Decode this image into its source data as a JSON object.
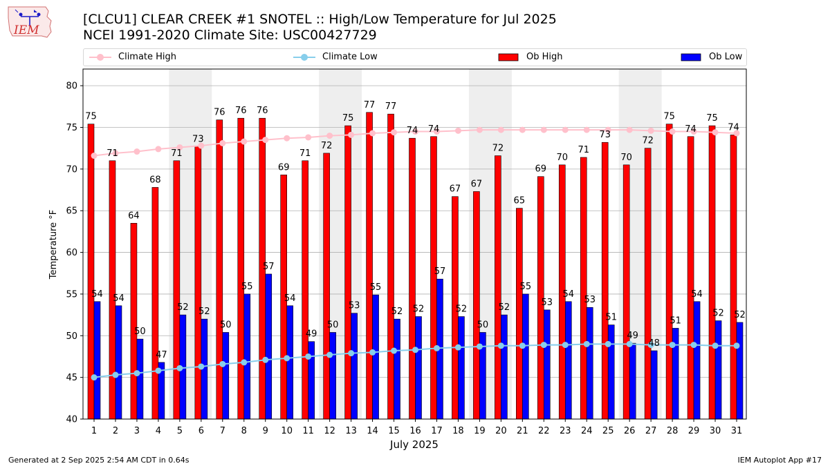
{
  "logo": {
    "text": "IEM"
  },
  "title_line1": "[CLCU1] CLEAR CREEK #1 SNOTEL :: High/Low Temperature for Jul 2025",
  "title_line2": "NCEI 1991-2020 Climate Site: USC00427729",
  "legend": {
    "items": [
      {
        "label": "Climate High",
        "color": "#ffc0cb",
        "kind": "line"
      },
      {
        "label": "Climate Low",
        "color": "#87ceeb",
        "kind": "line"
      },
      {
        "label": "Ob High",
        "color": "#ff0000",
        "kind": "bar"
      },
      {
        "label": "Ob Low",
        "color": "#0000ff",
        "kind": "bar"
      }
    ]
  },
  "footer": {
    "left": "Generated at 2 Sep 2025 2:54 AM CDT in 0.64s",
    "right": "IEM Autoplot App #17"
  },
  "chart_data": {
    "type": "bar",
    "xlabel": "July 2025",
    "ylabel": "Temperature °F",
    "ylim": [
      40,
      82
    ],
    "yticks": [
      40,
      45,
      50,
      55,
      60,
      65,
      70,
      75,
      80
    ],
    "grid": true,
    "legend_position": "top",
    "categories": [
      "1",
      "2",
      "3",
      "4",
      "5",
      "6",
      "7",
      "8",
      "9",
      "10",
      "11",
      "12",
      "13",
      "14",
      "15",
      "16",
      "17",
      "18",
      "19",
      "20",
      "21",
      "22",
      "23",
      "24",
      "25",
      "26",
      "27",
      "28",
      "29",
      "30",
      "31"
    ],
    "weekend_shading": [
      [
        5,
        6
      ],
      [
        12,
        13
      ],
      [
        19,
        20
      ],
      [
        26,
        27
      ]
    ],
    "series": [
      {
        "name": "Ob High",
        "color": "#ff0000",
        "values": [
          75.4,
          71.0,
          63.5,
          67.8,
          71.0,
          72.7,
          75.9,
          76.1,
          76.1,
          69.3,
          71.0,
          71.9,
          75.2,
          76.8,
          76.6,
          73.7,
          73.9,
          66.7,
          67.3,
          71.6,
          65.3,
          69.1,
          70.5,
          71.4,
          73.2,
          70.5,
          72.5,
          75.4,
          73.9,
          75.2,
          74.1
        ],
        "labels": [
          "75",
          "71",
          "64",
          "68",
          "71",
          "73",
          "76",
          "76",
          "76",
          "69",
          "71",
          "72",
          "75",
          "77",
          "77",
          "74",
          "74",
          "67",
          "67",
          "72",
          "65",
          "69",
          "70",
          "71",
          "73",
          "70",
          "72",
          "75",
          "74",
          "75",
          "74"
        ]
      },
      {
        "name": "Ob Low",
        "color": "#0000ff",
        "values": [
          54.1,
          53.6,
          49.6,
          46.8,
          52.5,
          52.0,
          50.4,
          55.0,
          57.4,
          53.6,
          49.3,
          50.4,
          52.7,
          54.9,
          52.0,
          52.3,
          56.8,
          52.3,
          50.4,
          52.5,
          55.0,
          53.1,
          54.1,
          53.4,
          51.3,
          49.1,
          48.2,
          50.9,
          54.1,
          51.8,
          51.6
        ],
        "labels": [
          "54",
          "54",
          "50",
          "47",
          "52",
          "52",
          "50",
          "55",
          "57",
          "54",
          "49",
          "50",
          "53",
          "55",
          "52",
          "52",
          "57",
          "52",
          "50",
          "52",
          "55",
          "53",
          "54",
          "53",
          "51",
          "49",
          "48",
          "51",
          "54",
          "52",
          "52"
        ]
      },
      {
        "name": "Climate High",
        "color": "#ffc0cb",
        "values": [
          71.6,
          71.9,
          72.1,
          72.4,
          72.6,
          72.8,
          73.1,
          73.3,
          73.5,
          73.7,
          73.8,
          74.0,
          74.1,
          74.3,
          74.4,
          74.5,
          74.5,
          74.6,
          74.7,
          74.7,
          74.7,
          74.7,
          74.7,
          74.7,
          74.7,
          74.7,
          74.6,
          74.5,
          74.5,
          74.4,
          74.3
        ]
      },
      {
        "name": "Climate Low",
        "color": "#87ceeb",
        "values": [
          45.0,
          45.3,
          45.5,
          45.8,
          46.1,
          46.3,
          46.6,
          46.8,
          47.1,
          47.3,
          47.5,
          47.7,
          47.9,
          48.0,
          48.2,
          48.3,
          48.5,
          48.6,
          48.7,
          48.8,
          48.8,
          48.9,
          48.9,
          49.0,
          49.0,
          49.0,
          48.9,
          48.9,
          48.9,
          48.8,
          48.8
        ]
      }
    ]
  }
}
